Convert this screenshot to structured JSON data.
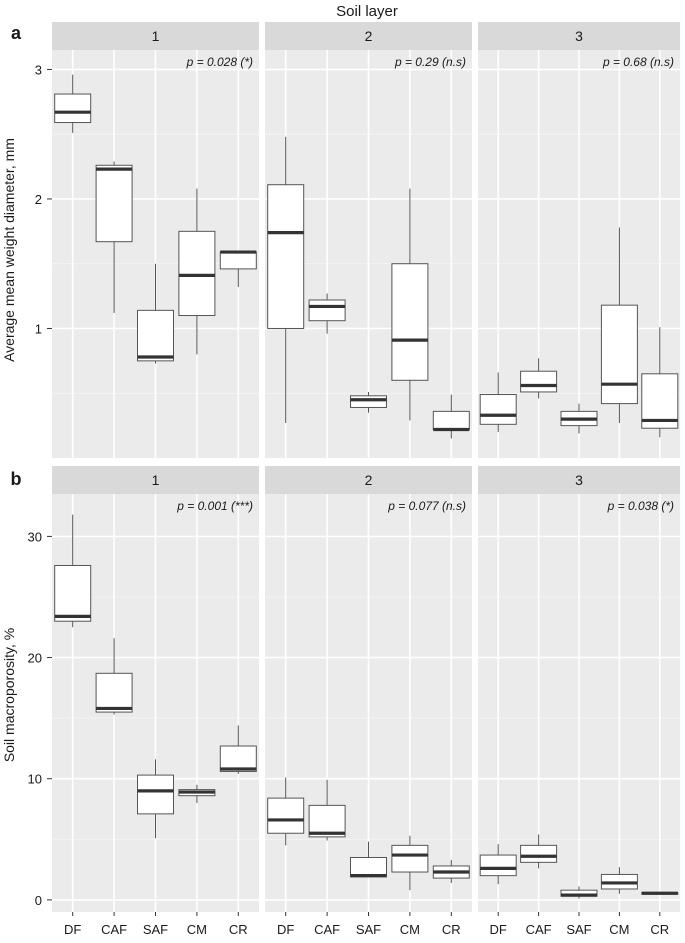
{
  "figure_title": "Soil layer",
  "categories": [
    "DF",
    "CAF",
    "SAF",
    "CM",
    "CR"
  ],
  "colors": {
    "panel_bg": "#ebebeb",
    "strip_bg": "#d9d9d9",
    "grid": "#ffffff",
    "box_fill": "#ffffff",
    "box_stroke": "#555555",
    "median": "#333333",
    "text": "#1a1a1a"
  },
  "chart_data": [
    {
      "type": "box",
      "panel_label": "a",
      "ylabel": "Average mean weight diameter, mm",
      "xlabel": "",
      "ylim": [
        0,
        3.15
      ],
      "yticks": [
        1,
        2,
        3
      ],
      "tick_labels": [
        "1",
        "2",
        "3"
      ],
      "facets": [
        {
          "strip": "1",
          "annotation": "p = 0.028 (*)",
          "boxes": [
            {
              "category": "DF",
              "min": 2.51,
              "q1": 2.59,
              "median": 2.67,
              "q3": 2.81,
              "max": 2.96
            },
            {
              "category": "CAF",
              "min": 1.12,
              "q1": 1.67,
              "median": 2.23,
              "q3": 2.26,
              "max": 2.29
            },
            {
              "category": "SAF",
              "min": 0.73,
              "q1": 0.75,
              "median": 0.78,
              "q3": 1.14,
              "max": 1.5
            },
            {
              "category": "CM",
              "min": 0.8,
              "q1": 1.1,
              "median": 1.41,
              "q3": 1.75,
              "max": 2.08
            },
            {
              "category": "CR",
              "min": 1.32,
              "q1": 1.46,
              "median": 1.59,
              "q3": 1.59,
              "max": 1.59
            }
          ]
        },
        {
          "strip": "2",
          "annotation": "p = 0.29 (n.s)",
          "boxes": [
            {
              "category": "DF",
              "min": 0.27,
              "q1": 1.0,
              "median": 1.74,
              "q3": 2.11,
              "max": 2.48
            },
            {
              "category": "CAF",
              "min": 0.96,
              "q1": 1.06,
              "median": 1.17,
              "q3": 1.22,
              "max": 1.27
            },
            {
              "category": "SAF",
              "min": 0.35,
              "q1": 0.39,
              "median": 0.45,
              "q3": 0.48,
              "max": 0.51
            },
            {
              "category": "CM",
              "min": 0.29,
              "q1": 0.6,
              "median": 0.91,
              "q3": 1.5,
              "max": 2.08
            },
            {
              "category": "CR",
              "min": 0.15,
              "q1": 0.22,
              "median": 0.22,
              "q3": 0.36,
              "max": 0.49
            }
          ]
        },
        {
          "strip": "3",
          "annotation": "p = 0.68 (n.s)",
          "boxes": [
            {
              "category": "DF",
              "min": 0.2,
              "q1": 0.26,
              "median": 0.33,
              "q3": 0.49,
              "max": 0.66
            },
            {
              "category": "CAF",
              "min": 0.46,
              "q1": 0.51,
              "median": 0.56,
              "q3": 0.67,
              "max": 0.77
            },
            {
              "category": "SAF",
              "min": 0.19,
              "q1": 0.25,
              "median": 0.3,
              "q3": 0.36,
              "max": 0.42
            },
            {
              "category": "CM",
              "min": 0.27,
              "q1": 0.42,
              "median": 0.57,
              "q3": 1.18,
              "max": 1.78
            },
            {
              "category": "CR",
              "min": 0.16,
              "q1": 0.23,
              "median": 0.29,
              "q3": 0.65,
              "max": 1.01
            }
          ]
        }
      ]
    },
    {
      "type": "box",
      "panel_label": "b",
      "ylabel": "Soil macroporosity, %",
      "xlabel": "",
      "ylim": [
        -1,
        33.5
      ],
      "yticks": [
        0,
        10,
        20,
        30
      ],
      "tick_labels": [
        "0",
        "10",
        "20",
        "30"
      ],
      "facets": [
        {
          "strip": "1",
          "annotation": "p = 0.001 (***)",
          "boxes": [
            {
              "category": "DF",
              "min": 22.5,
              "q1": 23.0,
              "median": 23.4,
              "q3": 27.6,
              "max": 31.8
            },
            {
              "category": "CAF",
              "min": 15.3,
              "q1": 15.5,
              "median": 15.8,
              "q3": 18.7,
              "max": 21.6
            },
            {
              "category": "SAF",
              "min": 5.1,
              "q1": 7.1,
              "median": 9.0,
              "q3": 10.3,
              "max": 11.6
            },
            {
              "category": "CM",
              "min": 8.0,
              "q1": 8.6,
              "median": 8.9,
              "q3": 9.1,
              "max": 9.5
            },
            {
              "category": "CR",
              "min": 10.4,
              "q1": 10.6,
              "median": 10.8,
              "q3": 12.7,
              "max": 14.4
            }
          ]
        },
        {
          "strip": "2",
          "annotation": "p = 0.077 (n.s)",
          "boxes": [
            {
              "category": "DF",
              "min": 4.5,
              "q1": 5.5,
              "median": 6.6,
              "q3": 8.4,
              "max": 10.1
            },
            {
              "category": "CAF",
              "min": 4.9,
              "q1": 5.2,
              "median": 5.5,
              "q3": 7.8,
              "max": 9.9
            },
            {
              "category": "SAF",
              "min": 1.9,
              "q1": 1.9,
              "median": 2.0,
              "q3": 3.5,
              "max": 4.8
            },
            {
              "category": "CM",
              "min": 0.8,
              "q1": 2.3,
              "median": 3.7,
              "q3": 4.5,
              "max": 5.3
            },
            {
              "category": "CR",
              "min": 1.4,
              "q1": 1.8,
              "median": 2.3,
              "q3": 2.8,
              "max": 3.3
            }
          ]
        },
        {
          "strip": "3",
          "annotation": "p = 0.038 (*)",
          "boxes": [
            {
              "category": "DF",
              "min": 1.3,
              "q1": 2.0,
              "median": 2.6,
              "q3": 3.7,
              "max": 4.6
            },
            {
              "category": "CAF",
              "min": 2.6,
              "q1": 3.1,
              "median": 3.6,
              "q3": 4.5,
              "max": 5.4
            },
            {
              "category": "SAF",
              "min": 0.1,
              "q1": 0.3,
              "median": 0.4,
              "q3": 0.8,
              "max": 1.1
            },
            {
              "category": "CM",
              "min": 0.5,
              "q1": 0.9,
              "median": 1.4,
              "q3": 2.1,
              "max": 2.7
            },
            {
              "category": "CR",
              "min": 0.5,
              "q1": 0.5,
              "median": 0.55,
              "q3": 0.6,
              "max": 0.6
            }
          ]
        }
      ]
    }
  ]
}
